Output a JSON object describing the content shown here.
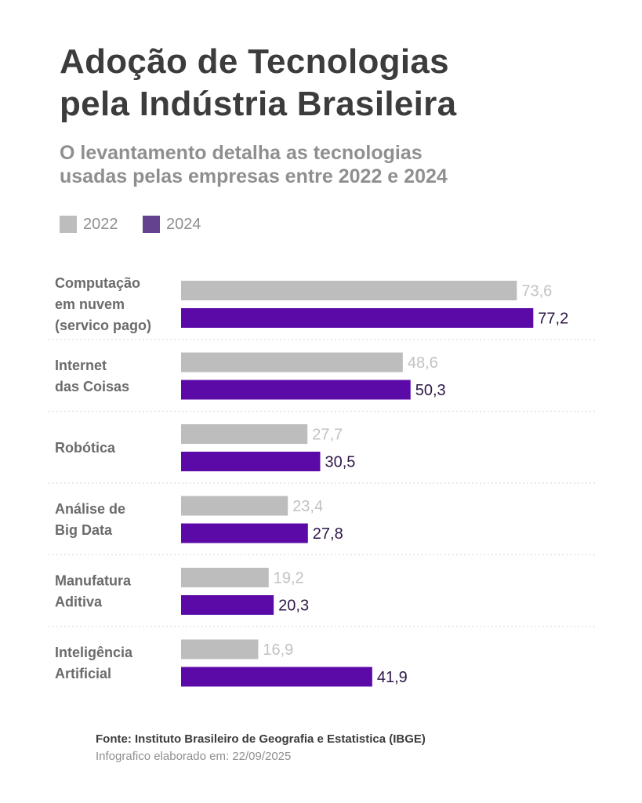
{
  "header": {
    "title_line1": "Adoção de Tecnologias",
    "title_line2": "pela Indústria Brasileira",
    "subtitle_line1": "O levantamento detalha as tecnologias",
    "subtitle_line2": "usadas pelas empresas entre 2022 e 2024"
  },
  "footer": {
    "source": "Fonte: Instituto Brasileiro de Geografia e Estatistica (IBGE)",
    "date_label": "Infografico elaborado em:",
    "date_value": "22/09/2025"
  },
  "chart_data": {
    "type": "bar",
    "orientation": "horizontal",
    "title": "Adoção de Tecnologias pela Indústria Brasileira",
    "subtitle": "O levantamento detalha as tecnologias usadas pelas empresas entre 2022 e 2024",
    "categories": [
      [
        "Computação",
        "em nuvem",
        "(servico pago)"
      ],
      [
        "Internet",
        "das Coisas"
      ],
      [
        "Robótica"
      ],
      [
        "Análise de",
        "Big Data"
      ],
      [
        "Manufatura",
        "Aditiva"
      ],
      [
        "Inteligência",
        "Artificial"
      ]
    ],
    "series": [
      {
        "name": "2022",
        "color": "#bdbdbd",
        "label_color": "#c2c2c2",
        "values": [
          73.6,
          48.6,
          27.7,
          23.4,
          19.2,
          16.9
        ],
        "labels": [
          "73,6",
          "48,6",
          "27,7",
          "23,4",
          "19,2",
          "16,9"
        ]
      },
      {
        "name": "2024",
        "color": "#5b0aa8",
        "label_color": "#2e1747",
        "values": [
          77.2,
          50.3,
          30.5,
          27.8,
          20.3,
          41.9
        ],
        "labels": [
          "77,2",
          "50,3",
          "30,5",
          "27,8",
          "20,3",
          "41,9"
        ]
      }
    ],
    "legend": {
      "position": "top-left",
      "swatch_2022": "#bdbdbd",
      "swatch_2024": "#64428f"
    },
    "xlim": [
      0,
      100
    ],
    "grid": false,
    "separators": "dotted"
  }
}
